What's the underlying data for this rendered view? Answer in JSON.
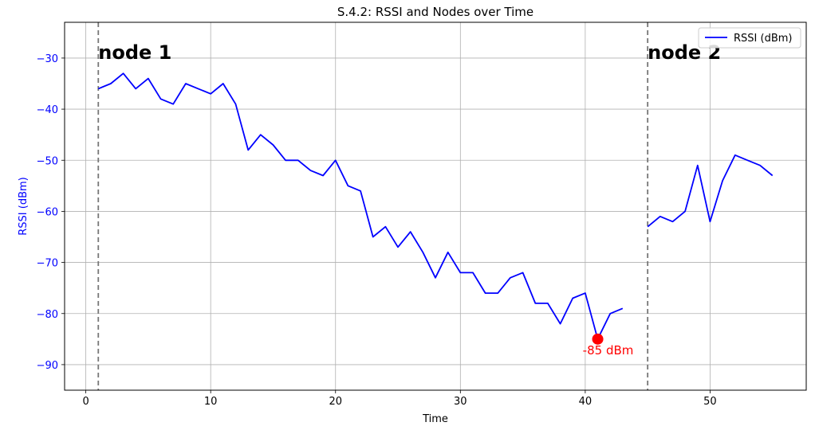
{
  "chart_data": {
    "type": "line",
    "title": "S.4.2: RSSI and Nodes over Time",
    "xlabel": "Time",
    "ylabel": "RSSI (dBm)",
    "xlim": [
      -1.7,
      57.7
    ],
    "ylim": [
      -95,
      -23
    ],
    "xticks": [
      0,
      10,
      20,
      30,
      40,
      50
    ],
    "yticks": [
      -30,
      -40,
      -50,
      -60,
      -70,
      -80,
      -90
    ],
    "grid": true,
    "legend_position": "top-right",
    "series": [
      {
        "name": "RSSI (dBm)",
        "color": "#0000ff",
        "segments": [
          {
            "x": [
              1,
              2,
              3,
              4,
              5,
              6,
              7,
              8,
              9,
              10,
              11,
              12,
              13,
              14,
              15,
              16,
              17,
              18,
              19,
              20,
              21,
              22,
              23,
              24,
              25,
              26,
              27,
              28,
              29,
              30,
              31,
              32,
              33,
              34,
              35,
              36,
              37,
              38,
              39,
              40,
              41,
              42,
              43
            ],
            "y": [
              -36,
              -35,
              -33,
              -36,
              -34,
              -38,
              -39,
              -35,
              -36,
              -37,
              -35,
              -39,
              -48,
              -45,
              -47,
              -50,
              -50,
              -52,
              -53,
              -50,
              -55,
              -56,
              -65,
              -63,
              -67,
              -64,
              -68,
              -73,
              -68,
              -72,
              -72,
              -76,
              -76,
              -73,
              -72,
              -78,
              -78,
              -82,
              -77,
              -76,
              -85,
              -80,
              -79
            ]
          },
          {
            "x": [
              45,
              46,
              47,
              48,
              49,
              50,
              51,
              52,
              53,
              54,
              55
            ],
            "y": [
              -63,
              -61,
              -62,
              -60,
              -51,
              -62,
              -54,
              -49,
              -50,
              -51,
              -53
            ]
          }
        ]
      }
    ],
    "vlines": [
      {
        "x": 1,
        "label": "node 1"
      },
      {
        "x": 45,
        "label": "node 2"
      }
    ],
    "annotation": {
      "x": 41,
      "y": -85,
      "text": "-85 dBm",
      "color": "#ff0000"
    },
    "ytick_color": "#0000ff",
    "ylabel_color": "#0000ff"
  }
}
